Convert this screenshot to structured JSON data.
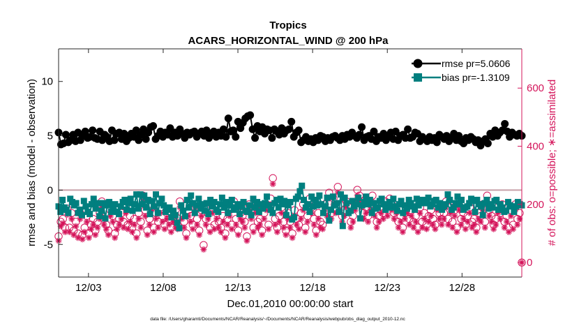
{
  "chart_data": {
    "type": "line",
    "title": "Tropics",
    "subtitle": "ACARS_HORIZONTAL_WIND @ 200 hPa",
    "xlabel": "Dec.01,2010 00:00:00 start",
    "ylabel_left": "rmse and bias (model - observation)",
    "ylabel_right": "# of obs: o=possible; ∗=assimilated",
    "footnote": "data file: /Users/gharamti/Documents/NCAR/Reanalysis/~/Documents/NCAR/Reanalysis/webpub/obs_diag_output_2010-12.nc",
    "x_start_day": 1,
    "x_end_day": 32,
    "xlim": [
      1,
      32
    ],
    "ylim_left": [
      -8,
      13
    ],
    "ylim_right": [
      -50,
      735
    ],
    "xticks": [
      {
        "day": 3,
        "label": "12/03"
      },
      {
        "day": 8,
        "label": "12/08"
      },
      {
        "day": 13,
        "label": "12/13"
      },
      {
        "day": 18,
        "label": "12/18"
      },
      {
        "day": 23,
        "label": "12/23"
      },
      {
        "day": 28,
        "label": "12/28"
      }
    ],
    "yticks_left": [
      {
        "v": -5,
        "label": "-5"
      },
      {
        "v": 0,
        "label": "0"
      },
      {
        "v": 5,
        "label": "5"
      },
      {
        "v": 10,
        "label": "10"
      }
    ],
    "yticks_right": [
      {
        "v": 0,
        "label": "0"
      },
      {
        "v": 200,
        "label": "200"
      },
      {
        "v": 400,
        "label": "400"
      },
      {
        "v": 600,
        "label": "600"
      }
    ],
    "zero_line": 0,
    "series": [
      {
        "name": "rmse",
        "legend": "rmse pr=5.0606",
        "color": "#000000",
        "marker": "circle",
        "values": [
          5.3,
          4.2,
          4.3,
          5.1,
          4.4,
          4.6,
          5.1,
          4.5,
          5.3,
          4.6,
          5.0,
          5.4,
          4.8,
          4.9,
          5.5,
          4.8,
          4.7,
          5.4,
          4.6,
          5.1,
          4.9,
          4.5,
          5.5,
          4.6,
          5.2,
          5.3,
          4.7,
          5.2,
          4.5,
          4.8,
          5.2,
          4.9,
          5.5,
          4.6,
          5.1,
          5.6,
          4.7,
          5.3,
          5.8,
          5.9,
          4.7,
          5.0,
          5.4,
          4.9,
          5.3,
          5.1,
          5.7,
          4.9,
          5.3,
          5.0,
          5.6,
          5.2,
          4.8,
          5.3,
          5.1,
          5.3,
          5.4,
          4.9,
          5.2,
          5.4,
          5.0,
          5.5,
          4.8,
          5.1,
          5.4,
          4.9,
          5.3,
          5.0,
          5.6,
          4.9,
          6.6,
          5.4,
          5.5,
          4.9,
          6.3,
          5.7,
          6.2,
          6.6,
          6.8,
          6.9,
          5.6,
          4.8,
          5.9,
          5.4,
          5.8,
          5.2,
          5.6,
          5.5,
          4.8,
          5.6,
          5.4,
          5.1,
          5.7,
          5.2,
          5.5,
          5.6,
          6.3,
          4.9,
          5.3,
          5.5,
          4.4,
          4.6,
          4.9,
          4.5,
          4.7,
          4.4,
          4.8,
          4.6,
          5.0,
          4.9,
          4.5,
          4.8,
          4.6,
          4.9,
          5.0,
          4.8,
          4.6,
          5.0,
          4.7,
          5.1,
          4.9,
          5.3,
          5.0,
          4.8,
          5.1,
          5.8,
          4.6,
          4.9,
          5.0,
          4.7,
          5.4,
          4.5,
          4.9,
          4.8,
          5.2,
          4.6,
          5.0,
          5.3,
          4.7,
          5.4,
          4.6,
          5.0,
          5.1,
          4.8,
          5.6,
          4.8,
          4.9,
          5.3,
          5.2,
          4.5,
          4.9,
          4.7,
          4.5,
          4.9,
          4.6,
          4.8,
          4.4,
          5.1,
          4.9,
          4.7,
          5.0,
          4.5,
          4.8,
          5.2,
          4.6,
          5.0,
          4.5,
          4.3,
          4.8,
          4.6,
          4.9,
          4.7,
          4.4,
          4.6,
          4.1,
          4.5,
          4.7,
          4.3,
          5.2,
          4.9,
          5.5,
          5.0,
          5.3,
          5.5,
          6.1,
          5.4,
          4.9,
          5.3,
          5.1,
          5.0,
          5.2,
          5.0
        ]
      },
      {
        "name": "bias",
        "legend": "bias pr=-1.3109",
        "color": "#007f7f",
        "marker": "square",
        "values": [
          -1.5,
          -2.0,
          -0.9,
          -1.6,
          -1.8,
          -2.1,
          -0.8,
          -1.1,
          -1.4,
          -1.2,
          -2.1,
          -1.8,
          -2.3,
          -1.0,
          -1.5,
          -2.0,
          -2.2,
          -1.3,
          -0.8,
          -1.7,
          -1.2,
          -2.4,
          -1.9,
          -1.2,
          -2.6,
          -1.4,
          -1.1,
          -2.0,
          -1.6,
          -1.3,
          -2.0,
          -2.2,
          -1.5,
          -1.1,
          -0.9,
          -1.8,
          -1.2,
          -0.8,
          -1.9,
          -1.3,
          -0.4,
          -1.7,
          -0.4,
          -1.3,
          -0.5,
          -1.6,
          -0.9,
          -2.2,
          -1.0,
          -1.5,
          -0.4,
          -2.1,
          -1.2,
          -0.8,
          -1.4,
          -2.0,
          -1.8,
          -1.6,
          -2.5,
          -1.9,
          -2.3,
          -3.0,
          -3.5,
          -1.4,
          -1.9,
          -2.4,
          -0.9,
          -1.6,
          -0.5,
          -1.2,
          -2.1,
          -1.4,
          -0.8,
          -1.7,
          -1.3,
          -1.9,
          -1.2,
          -2.2,
          -0.9,
          -1.5,
          -1.1,
          -1.8,
          -2.0,
          -1.3,
          -0.7,
          -1.6,
          -1.1,
          -2.1,
          -1.4,
          -0.9,
          -1.8,
          -1.6,
          -1.3,
          -2.2,
          -1.5,
          -1.1,
          -1.9,
          -2.0,
          -1.4,
          -2.3,
          -0.8,
          -1.6,
          -1.1,
          -2.0,
          -1.3,
          -1.7,
          -1.2,
          -0.6,
          -1.4,
          -1.8,
          -2.1,
          -1.2,
          -0.9,
          -1.6,
          -0.8,
          -1.3,
          -1.0,
          -2.3,
          -1.4,
          -1.1,
          -2.7,
          -2.5,
          -0.8,
          -0.6,
          -0.1,
          0.4,
          -0.9,
          -1.6,
          -1.3,
          -2.0,
          -0.6,
          -1.5,
          -0.9,
          -1.4,
          -0.5,
          -1.3,
          -2.1,
          -1.5,
          -0.7,
          -2.8,
          -1.8,
          -0.6,
          -1.4,
          -1.2,
          -2.0,
          -0.4,
          -3.3,
          -0.7,
          -1.2,
          -2.1,
          -1.9,
          -1.0,
          -1.5,
          -1.3,
          -0.7,
          -2.6,
          -1.4,
          -1.1,
          -0.6,
          -1.3,
          -0.9,
          -2.1,
          -1.2,
          -1.7,
          -1.6,
          -1.0,
          -0.8,
          -1.3,
          -1.8,
          -1.4,
          -1.1,
          -1.6,
          -0.8,
          -1.5,
          -1.9,
          -1.3,
          -1.0,
          -2.1,
          -1.4,
          -1.7,
          -0.9,
          -1.2,
          -1.5,
          -1.8,
          -0.8,
          -1.4,
          -1.1,
          -0.9,
          -1.2,
          -1.1,
          -0.7,
          -1.5,
          -1.3,
          -1.0,
          -0.9,
          -1.6,
          -1.2,
          -1.8,
          -1.5,
          -1.3,
          -0.4,
          -0.9,
          -1.8,
          -1.6,
          -1.2,
          -0.6,
          -1.3,
          -0.9,
          -1.8,
          -1.6,
          -1.5,
          -1.2,
          -0.8,
          -1.0,
          -2.0,
          -0.9,
          -1.3,
          -1.5,
          -2.3,
          -1.2,
          -0.9,
          -1.7,
          -1.3,
          -1.6,
          -1.0,
          -0.9,
          -1.8,
          -1.3,
          -1.6,
          -2.0,
          -1.9,
          -1.1,
          -1.4,
          -1.5,
          -2.0,
          -1.5,
          -1.1,
          -1.3,
          -1.4
        ]
      }
    ],
    "obs_possible": {
      "color": "#d4145a",
      "marker": "circle",
      "values": [
        90,
        140,
        150,
        120,
        185,
        120,
        170,
        110,
        140,
        100,
        170,
        95,
        120,
        160,
        100,
        130,
        150,
        110,
        140,
        170,
        210,
        150,
        130,
        110,
        180,
        160,
        100,
        130,
        150,
        170,
        140,
        190,
        130,
        160,
        120,
        150,
        100,
        170,
        140,
        230,
        180,
        110,
        150,
        200,
        120,
        170,
        140,
        190,
        160,
        130,
        170,
        150,
        120,
        160,
        140,
        130,
        210,
        170,
        140,
        100,
        180,
        160,
        130,
        200,
        150,
        110,
        180,
        60,
        150,
        170,
        120,
        190,
        130,
        170,
        140,
        120,
        160,
        100,
        150,
        180,
        130,
        210,
        150,
        110,
        170,
        160,
        140,
        90,
        200,
        170,
        120,
        190,
        140,
        150,
        110,
        170,
        200,
        130,
        220,
        290,
        150,
        120,
        160,
        190,
        140,
        110,
        170,
        140,
        100,
        180,
        150,
        130,
        170,
        200,
        120,
        160,
        220,
        190,
        150,
        110,
        170,
        140,
        130,
        200,
        180,
        240,
        170,
        220,
        190,
        260,
        200,
        160,
        180,
        210,
        190,
        140,
        160,
        200,
        250,
        230,
        210,
        170,
        190,
        160,
        200,
        230,
        180,
        140,
        160,
        190,
        170,
        210,
        180,
        220,
        200,
        170,
        190,
        140,
        160,
        120,
        170,
        190,
        150,
        180,
        140,
        160,
        120,
        190,
        140,
        170,
        130,
        160,
        180,
        150,
        130,
        200,
        170,
        150,
        170,
        210,
        150,
        190,
        140,
        180,
        120,
        200,
        150,
        170,
        130,
        160,
        190,
        140,
        150,
        120,
        170,
        160,
        200,
        140,
        230,
        180,
        160,
        130,
        150,
        190,
        170,
        200,
        140,
        160,
        120,
        180,
        130,
        200,
        150,
        170,
        0
      ]
    },
    "obs_assimilated": {
      "color": "#d4145a",
      "marker": "asterisk",
      "values": [
        75,
        125,
        135,
        105,
        165,
        105,
        150,
        95,
        125,
        85,
        150,
        80,
        105,
        140,
        85,
        115,
        130,
        95,
        120,
        150,
        190,
        130,
        115,
        95,
        160,
        140,
        85,
        115,
        130,
        150,
        120,
        170,
        115,
        140,
        105,
        130,
        85,
        150,
        120,
        210,
        160,
        95,
        130,
        180,
        105,
        150,
        120,
        170,
        140,
        115,
        150,
        130,
        105,
        140,
        120,
        115,
        190,
        150,
        120,
        85,
        160,
        140,
        115,
        180,
        130,
        95,
        160,
        45,
        130,
        150,
        105,
        170,
        115,
        150,
        120,
        105,
        140,
        85,
        130,
        160,
        115,
        190,
        130,
        95,
        150,
        140,
        120,
        75,
        180,
        150,
        105,
        170,
        120,
        130,
        95,
        150,
        180,
        115,
        200,
        270,
        130,
        105,
        140,
        170,
        120,
        95,
        150,
        120,
        85,
        160,
        130,
        115,
        150,
        180,
        105,
        140,
        200,
        170,
        130,
        95,
        150,
        120,
        115,
        180,
        160,
        220,
        150,
        200,
        170,
        240,
        180,
        140,
        160,
        190,
        170,
        120,
        140,
        180,
        230,
        210,
        190,
        150,
        170,
        140,
        180,
        210,
        160,
        120,
        140,
        170,
        150,
        190,
        160,
        200,
        180,
        150,
        170,
        120,
        140,
        105,
        150,
        170,
        130,
        160,
        120,
        140,
        105,
        170,
        120,
        150,
        115,
        140,
        160,
        130,
        115,
        180,
        150,
        130,
        150,
        190,
        130,
        170,
        120,
        160,
        105,
        180,
        130,
        150,
        115,
        140,
        170,
        120,
        130,
        105,
        150,
        140,
        180,
        120,
        210,
        160,
        140,
        115,
        130,
        170,
        150,
        180,
        120,
        140,
        105,
        160,
        115,
        180,
        130,
        150,
        0
      ]
    }
  }
}
